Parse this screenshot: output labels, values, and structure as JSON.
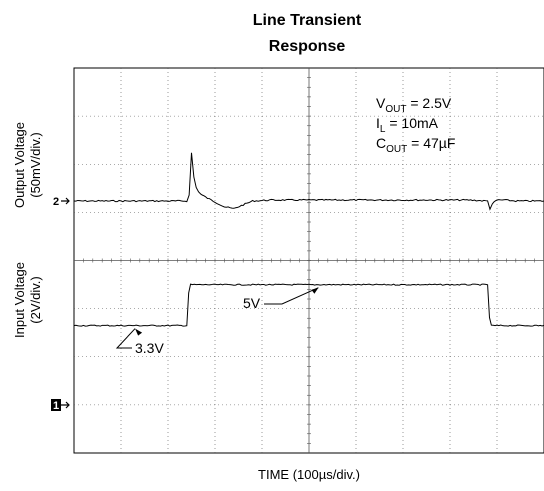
{
  "chart_data": {
    "type": "line",
    "title_line1": "Line Transient",
    "title_line2": "Response",
    "xlabel": "TIME (100µs/div.)",
    "ylabel_output_line1": "Output Voltage",
    "ylabel_output_line2": "(50mV/div.)",
    "ylabel_input_line1": "Input Voltage",
    "ylabel_input_line2": "(2V/div.)",
    "grid": true,
    "x_divisions": 10,
    "y_divisions": 8,
    "x_range_us": [
      0,
      1000
    ],
    "channel_markers": [
      {
        "label": "2",
        "channel": "output"
      },
      {
        "label": "1",
        "channel": "input"
      }
    ],
    "conditions": [
      {
        "main": "V",
        "sub": "OUT",
        "rest": " = 2.5V"
      },
      {
        "main": "I",
        "sub": "L",
        "rest": " = 10mA"
      },
      {
        "main": "C",
        "sub": "OUT",
        "rest": " = 47µF"
      }
    ],
    "annotations": [
      {
        "text": "5V",
        "series": "input"
      },
      {
        "text": "3.3V",
        "series": "input"
      }
    ],
    "series": [
      {
        "channel": "output",
        "units": "mV relative to 2.5V",
        "color": "#000000",
        "x": [
          0,
          240,
          245,
          250,
          255,
          260,
          265,
          270,
          280,
          300,
          320,
          340,
          360,
          380,
          420,
          600,
          840,
          880,
          885,
          890,
          900,
          915,
          940,
          1000
        ],
        "y": [
          0,
          0,
          6,
          50,
          25,
          14,
          10,
          7,
          4,
          -1,
          -6,
          -8,
          -4,
          0,
          1,
          1,
          1,
          0,
          -8,
          -3,
          1,
          1,
          0,
          0
        ]
      },
      {
        "channel": "input",
        "units": "V",
        "color": "#000000",
        "x": [
          0,
          240,
          245,
          1000
        ],
        "y": [
          3.3,
          3.3,
          5.0,
          5.0
        ],
        "x_fall": [
          880,
          885
        ],
        "y_after": 3.3
      }
    ]
  }
}
